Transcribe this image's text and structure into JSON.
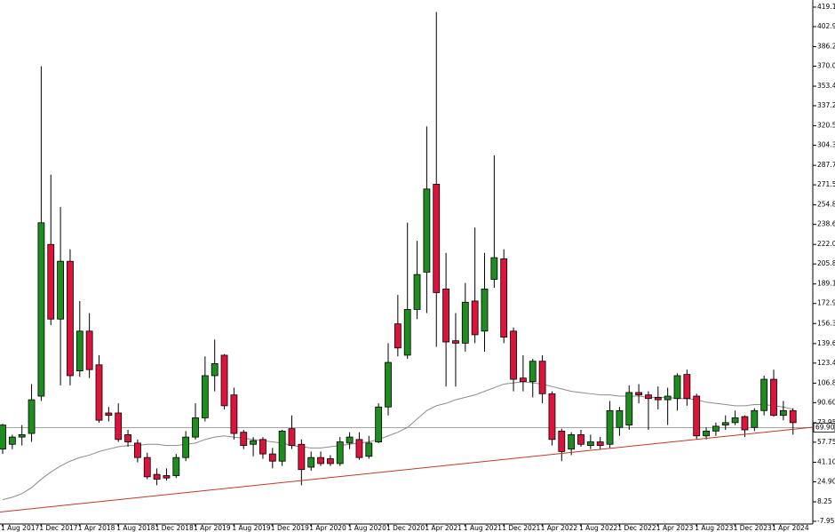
{
  "chart_data": {
    "type": "candlestick",
    "categories": [
      "1 Aug 2017",
      null,
      null,
      null,
      "1 Dec 2017",
      null,
      null,
      null,
      "1 Apr 2018",
      null,
      null,
      null,
      "1 Aug 2018",
      null,
      null,
      null,
      "1 Dec 2018",
      null,
      null,
      null,
      "1 Apr 2019",
      null,
      null,
      null,
      "1 Aug 2019",
      null,
      null,
      null,
      "1 Dec 2019",
      null,
      null,
      null,
      "1 Apr 2020",
      null,
      null,
      null,
      "1 Aug 2020",
      null,
      null,
      null,
      "1 Dec 2020",
      null,
      null,
      null,
      "1 Apr 2021",
      null,
      null,
      null,
      "1 Aug 2021",
      null,
      null,
      null,
      "1 Dec 2021",
      null,
      null,
      null,
      "1 Apr 2022",
      null,
      null,
      null,
      "1 Aug 2022",
      null,
      null,
      null,
      "1 Dec 2022",
      null,
      null,
      null,
      "1 Apr 2023",
      null,
      null,
      null,
      "1 Aug 2023",
      null,
      null,
      null,
      "1 Dec 2023",
      null,
      null,
      null,
      "1 Apr 2024",
      null,
      null
    ],
    "open": [
      52,
      56,
      62,
      65,
      96,
      222,
      160,
      208,
      117,
      150,
      122,
      82,
      82,
      64,
      57,
      45,
      31,
      30,
      30,
      45,
      62,
      78,
      113,
      130,
      97,
      66,
      56,
      60,
      48,
      42,
      69,
      56,
      37,
      45,
      44,
      40,
      57,
      60,
      46,
      58,
      87,
      156,
      130,
      168,
      199,
      272,
      185,
      142,
      140,
      175,
      150,
      193,
      210,
      150,
      111,
      108,
      125,
      98,
      67,
      52,
      64,
      55,
      58,
      56,
      70,
      72,
      99,
      97,
      95,
      93,
      94,
      114,
      96,
      63,
      67,
      72,
      74,
      79,
      70,
      84,
      110,
      80,
      84
    ],
    "high": [
      73,
      64,
      72,
      106,
      370,
      280,
      253,
      218,
      175,
      165,
      130,
      87,
      90,
      68,
      60,
      49,
      36,
      36,
      48,
      67,
      90,
      129,
      143,
      131,
      103,
      68,
      62,
      62,
      53,
      68,
      80,
      60,
      50,
      50,
      47,
      62,
      66,
      66,
      63,
      90,
      140,
      180,
      240,
      225,
      320,
      415,
      215,
      165,
      190,
      236,
      215,
      296,
      218,
      153,
      130,
      127,
      130,
      100,
      69,
      66,
      68,
      64,
      62,
      92,
      87,
      105,
      106,
      100,
      104,
      103,
      115,
      118,
      98,
      70,
      74,
      80,
      84,
      80,
      86,
      113,
      118,
      92,
      86
    ],
    "low": [
      48,
      52,
      55,
      58,
      92,
      155,
      105,
      105,
      112,
      111,
      74,
      75,
      58,
      54,
      41,
      27,
      22,
      26,
      28,
      42,
      60,
      75,
      100,
      85,
      60,
      52,
      46,
      44,
      36,
      38,
      52,
      22,
      34,
      38,
      38,
      38,
      52,
      43,
      44,
      57,
      80,
      129,
      127,
      160,
      165,
      137,
      104,
      104,
      133,
      140,
      133,
      186,
      140,
      100,
      100,
      95,
      90,
      55,
      42,
      47,
      54,
      52,
      52,
      53,
      63,
      68,
      90,
      68,
      85,
      72,
      84,
      88,
      60,
      60,
      63,
      68,
      72,
      62,
      67,
      80,
      79,
      76,
      64
    ],
    "close": [
      72,
      62,
      64,
      93,
      240,
      160,
      208,
      113,
      150,
      118,
      76,
      80,
      60,
      58,
      45,
      29,
      27,
      28,
      45,
      62,
      78,
      113,
      123,
      88,
      65,
      55,
      59,
      48,
      42,
      67,
      55,
      35,
      45,
      40,
      40,
      58,
      62,
      45,
      57,
      87,
      124,
      136,
      168,
      197,
      268,
      182,
      141,
      140,
      174,
      147,
      185,
      211,
      145,
      110,
      108,
      125,
      98,
      60,
      50,
      64,
      56,
      58,
      55,
      84,
      84,
      99,
      97,
      94,
      93,
      96,
      113,
      94,
      63,
      67,
      71,
      74,
      78,
      68,
      84,
      110,
      80,
      84,
      74
    ],
    "up_color": "#1e8c1e",
    "down_color": "#dc143c",
    "moving_average": {
      "color": "#8c8c8c",
      "values": [
        10,
        12,
        15,
        20,
        27,
        33,
        38,
        42,
        45,
        47,
        50,
        52,
        54,
        55,
        55,
        56,
        56,
        55,
        55,
        56,
        57,
        60,
        62,
        63,
        62,
        61,
        60,
        59,
        58,
        57,
        55,
        54,
        53,
        53,
        54,
        55,
        56,
        57,
        58,
        60,
        63,
        66,
        70,
        77,
        84,
        88,
        90,
        93,
        95,
        97,
        100,
        103,
        106,
        107,
        108,
        107,
        106,
        104,
        102,
        100,
        99,
        98,
        97,
        97,
        96,
        96,
        96,
        95,
        95,
        95,
        94,
        94,
        93,
        91,
        90,
        89,
        88,
        88,
        89,
        89,
        88,
        87,
        85
      ]
    },
    "trendline": {
      "color": "#c0392b",
      "values": [
        0,
        68.5
      ]
    },
    "current_price": {
      "value": 69.9,
      "label": "69.90"
    },
    "ylim": [
      -10.2,
      425.0
    ],
    "yticks": [
      {
        "value": 419.1,
        "label": "419.10"
      },
      {
        "value": 402.9,
        "label": "402.90"
      },
      386.25,
      370.05,
      {
        "value": 353.4,
        "label": "353.40"
      },
      {
        "value": 337.2,
        "label": "337.20"
      },
      320.55,
      304.35,
      {
        "value": 287.7,
        "label": "287.70"
      },
      {
        "value": 271.5,
        "label": "271.50"
      },
      254.85,
      238.65,
      {
        "value": 222,
        "label": "222.00"
      },
      {
        "value": 205.8,
        "label": "205.80"
      },
      189.15,
      172.95,
      {
        "value": 156.3,
        "label": "156.30"
      },
      139.65,
      123.45,
      {
        "value": 106.8,
        "label": "106.80"
      },
      {
        "value": 90.6,
        "label": "90.60"
      },
      73.95,
      57.75,
      {
        "value": 41.1,
        "label": "41.10"
      },
      {
        "value": 24.9,
        "label": "24.90"
      },
      8.25,
      -7.95
    ]
  }
}
